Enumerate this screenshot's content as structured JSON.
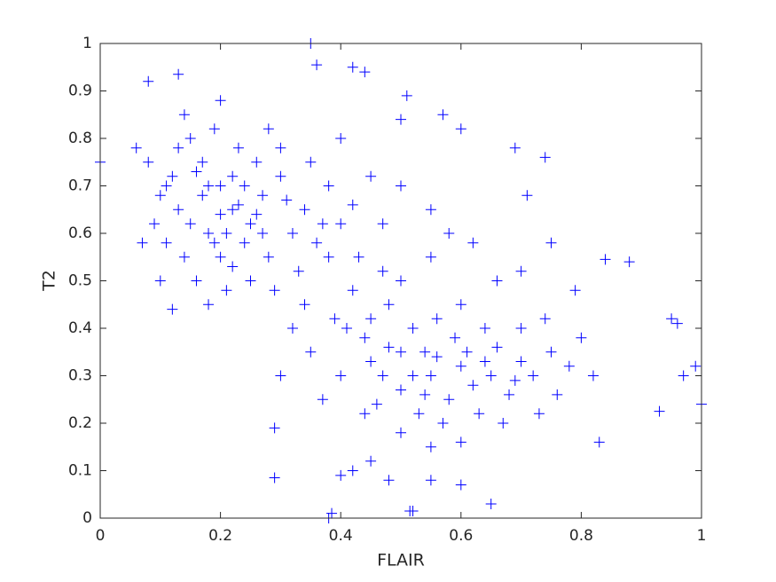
{
  "chart_data": {
    "type": "scatter",
    "xlabel": "FLAIR",
    "ylabel": "T2",
    "marker": "+",
    "color": "#0000ff",
    "xlim": [
      0,
      1
    ],
    "ylim": [
      0,
      1
    ],
    "xticks": [
      0,
      0.2,
      0.4,
      0.6,
      0.8,
      1
    ],
    "yticks": [
      0,
      0.1,
      0.2,
      0.3,
      0.4,
      0.5,
      0.6,
      0.7,
      0.8,
      0.9,
      1
    ],
    "x": [
      0.35,
      0.36,
      0.42,
      0.44,
      0.13,
      0.08,
      0.385,
      0.38,
      0.515,
      0.52,
      0.95,
      0.96,
      0.97,
      0.99,
      1.0,
      0.93,
      0.88,
      0.84,
      0.74,
      0.69,
      0.6,
      0.57,
      0.51,
      0.5,
      0.0,
      0.29,
      0.29,
      0.4,
      0.65,
      0.83,
      0.71,
      0.15,
      0.17,
      0.2,
      0.22,
      0.18,
      0.25,
      0.12,
      0.1,
      0.14,
      0.16,
      0.2,
      0.24,
      0.27,
      0.3,
      0.28,
      0.32,
      0.19,
      0.23,
      0.26,
      0.21,
      0.18,
      0.13,
      0.08,
      0.06,
      0.07,
      0.09,
      0.11,
      0.15,
      0.22,
      0.34,
      0.36,
      0.33,
      0.29,
      0.25,
      0.17,
      0.19,
      0.21,
      0.23,
      0.16,
      0.14,
      0.2,
      0.28,
      0.3,
      0.35,
      0.38,
      0.4,
      0.38,
      0.12,
      0.1,
      0.26,
      0.31,
      0.24,
      0.2,
      0.18,
      0.13,
      0.11,
      0.27,
      0.22,
      0.37,
      0.42,
      0.5,
      0.55,
      0.6,
      0.52,
      0.48,
      0.45,
      0.42,
      0.44,
      0.58,
      0.62,
      0.65,
      0.68,
      0.7,
      0.72,
      0.75,
      0.78,
      0.8,
      0.82,
      0.63,
      0.57,
      0.53,
      0.5,
      0.47,
      0.46,
      0.54,
      0.56,
      0.6,
      0.64,
      0.66,
      0.7,
      0.74,
      0.76,
      0.73,
      0.67,
      0.6,
      0.55,
      0.5,
      0.44,
      0.4,
      0.41,
      0.43,
      0.47,
      0.5,
      0.55,
      0.58,
      0.62,
      0.66,
      0.7,
      0.75,
      0.79,
      0.52,
      0.56,
      0.59,
      0.48,
      0.61,
      0.69,
      0.64,
      0.54,
      0.45,
      0.39,
      0.32,
      0.35,
      0.3,
      0.37,
      0.45,
      0.42,
      0.48,
      0.55,
      0.6,
      0.34,
      0.4,
      0.45,
      0.5,
      0.55,
      0.47
    ],
    "values": [
      1.0,
      0.955,
      0.95,
      0.94,
      0.935,
      0.92,
      0.01,
      0.0,
      0.015,
      0.015,
      0.42,
      0.41,
      0.3,
      0.32,
      0.24,
      0.225,
      0.54,
      0.545,
      0.76,
      0.78,
      0.82,
      0.85,
      0.89,
      0.84,
      0.75,
      0.19,
      0.085,
      0.09,
      0.03,
      0.16,
      0.68,
      0.8,
      0.75,
      0.7,
      0.65,
      0.6,
      0.62,
      0.72,
      0.68,
      0.55,
      0.5,
      0.55,
      0.58,
      0.68,
      0.72,
      0.55,
      0.6,
      0.82,
      0.78,
      0.75,
      0.48,
      0.45,
      0.65,
      0.75,
      0.78,
      0.58,
      0.62,
      0.7,
      0.62,
      0.72,
      0.65,
      0.58,
      0.52,
      0.48,
      0.5,
      0.68,
      0.58,
      0.6,
      0.66,
      0.73,
      0.85,
      0.88,
      0.82,
      0.78,
      0.75,
      0.7,
      0.62,
      0.55,
      0.44,
      0.5,
      0.64,
      0.67,
      0.7,
      0.64,
      0.7,
      0.78,
      0.58,
      0.6,
      0.53,
      0.62,
      0.66,
      0.35,
      0.3,
      0.32,
      0.4,
      0.45,
      0.42,
      0.48,
      0.38,
      0.25,
      0.28,
      0.3,
      0.26,
      0.33,
      0.3,
      0.35,
      0.32,
      0.38,
      0.3,
      0.22,
      0.2,
      0.22,
      0.27,
      0.3,
      0.24,
      0.35,
      0.42,
      0.45,
      0.4,
      0.36,
      0.4,
      0.42,
      0.26,
      0.22,
      0.2,
      0.16,
      0.15,
      0.18,
      0.22,
      0.3,
      0.4,
      0.55,
      0.52,
      0.5,
      0.55,
      0.6,
      0.58,
      0.5,
      0.52,
      0.58,
      0.48,
      0.3,
      0.34,
      0.38,
      0.36,
      0.35,
      0.29,
      0.33,
      0.26,
      0.33,
      0.42,
      0.4,
      0.35,
      0.3,
      0.25,
      0.12,
      0.1,
      0.08,
      0.08,
      0.07,
      0.45,
      0.8,
      0.72,
      0.7,
      0.65,
      0.62
    ]
  }
}
